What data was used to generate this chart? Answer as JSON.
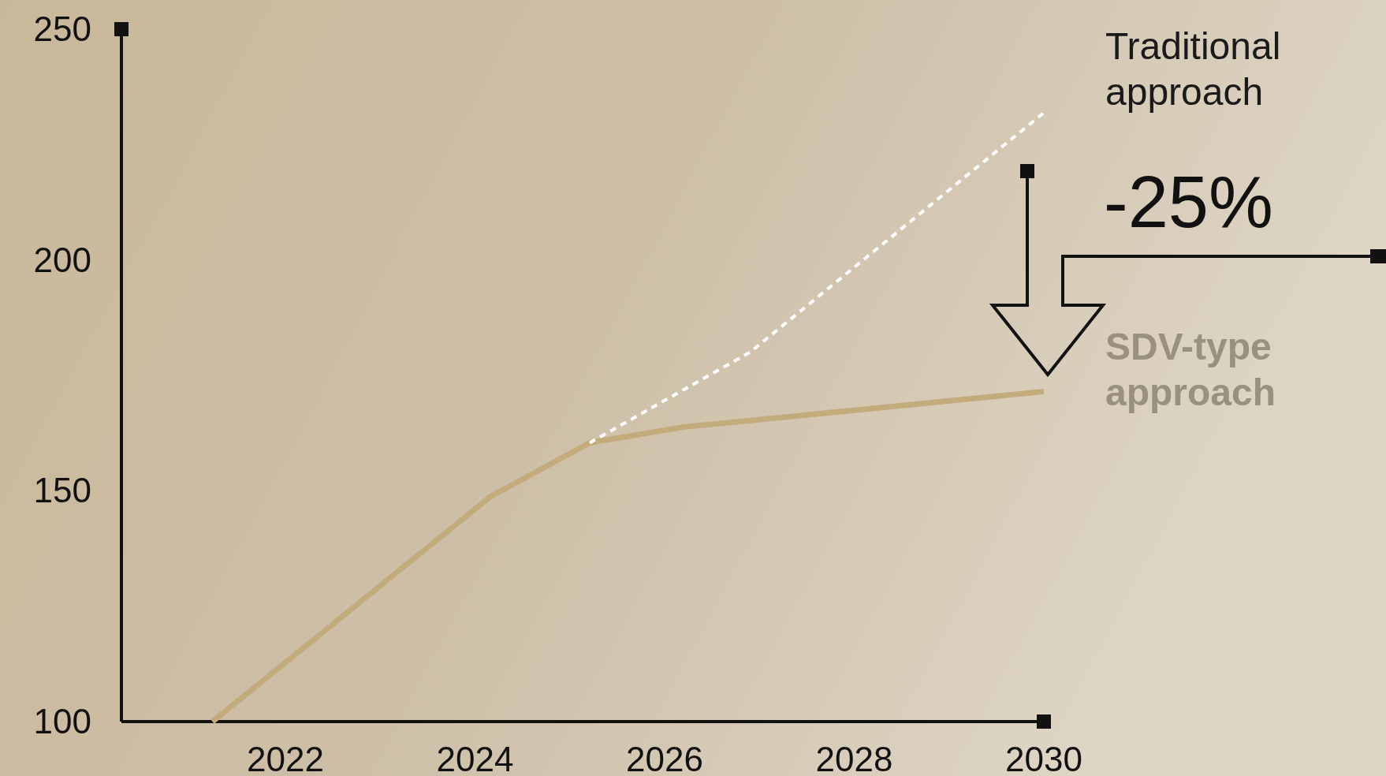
{
  "chart_data": {
    "type": "line",
    "xlim": [
      2020.27,
      2030
    ],
    "xticks": [
      2022,
      2024,
      2026,
      2028,
      2030
    ],
    "ylim": [
      100,
      250
    ],
    "yticks": [
      100,
      150,
      200,
      250
    ],
    "annotations": [
      "-25%"
    ],
    "series": [
      {
        "name": "Traditional approach",
        "color": "#ffffff",
        "line_style": "dashed",
        "x": [
          2025.21,
          2026.9,
          2030
        ],
        "values": [
          160.4,
          180,
          231.9
        ]
      },
      {
        "name": "SDV-type approach",
        "color": "#c4ab7c",
        "line_style": "solid",
        "x": [
          2021.23,
          2024.16,
          2025.21,
          2026.2,
          2030
        ],
        "values": [
          100,
          148.7,
          160.4,
          163.8,
          171.5
        ]
      }
    ]
  }
}
